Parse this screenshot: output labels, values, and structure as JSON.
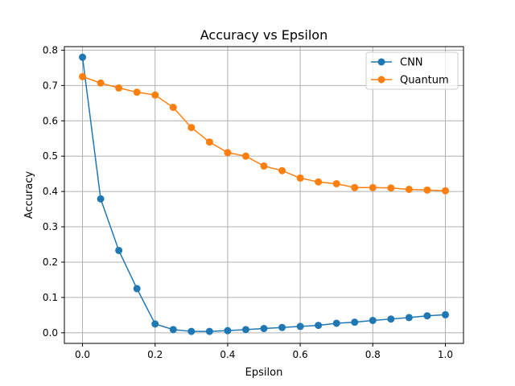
{
  "chart_data": {
    "type": "line",
    "title": "Accuracy vs Epsilon",
    "xlabel": "Epsilon",
    "ylabel": "Accuracy",
    "xlim": [
      -0.05,
      1.05
    ],
    "ylim": [
      -0.03,
      0.81
    ],
    "xticks": [
      0.0,
      0.2,
      0.4,
      0.6,
      0.8,
      1.0
    ],
    "xtick_labels": [
      "0.0",
      "0.2",
      "0.4",
      "0.6",
      "0.8",
      "1.0"
    ],
    "yticks": [
      0.0,
      0.1,
      0.2,
      0.3,
      0.4,
      0.5,
      0.6,
      0.7,
      0.8
    ],
    "ytick_labels": [
      "0.0",
      "0.1",
      "0.2",
      "0.3",
      "0.4",
      "0.5",
      "0.6",
      "0.7",
      "0.8"
    ],
    "grid": true,
    "legend_position": "top-right",
    "x": [
      0.0,
      0.05,
      0.1,
      0.15,
      0.2,
      0.25,
      0.3,
      0.35,
      0.4,
      0.45,
      0.5,
      0.55,
      0.6,
      0.65,
      0.7,
      0.75,
      0.8,
      0.85,
      0.9,
      0.95,
      1.0
    ],
    "series": [
      {
        "name": "CNN",
        "color": "#1f77b4",
        "values": [
          0.78,
          0.379,
          0.233,
          0.125,
          0.025,
          0.009,
          0.004,
          0.004,
          0.006,
          0.009,
          0.012,
          0.015,
          0.018,
          0.021,
          0.027,
          0.03,
          0.035,
          0.039,
          0.043,
          0.048,
          0.051
        ]
      },
      {
        "name": "Quantum",
        "color": "#ff7f0e",
        "values": [
          0.725,
          0.707,
          0.693,
          0.681,
          0.673,
          0.638,
          0.581,
          0.54,
          0.51,
          0.5,
          0.472,
          0.459,
          0.438,
          0.427,
          0.422,
          0.411,
          0.411,
          0.41,
          0.406,
          0.404,
          0.402
        ]
      }
    ]
  }
}
